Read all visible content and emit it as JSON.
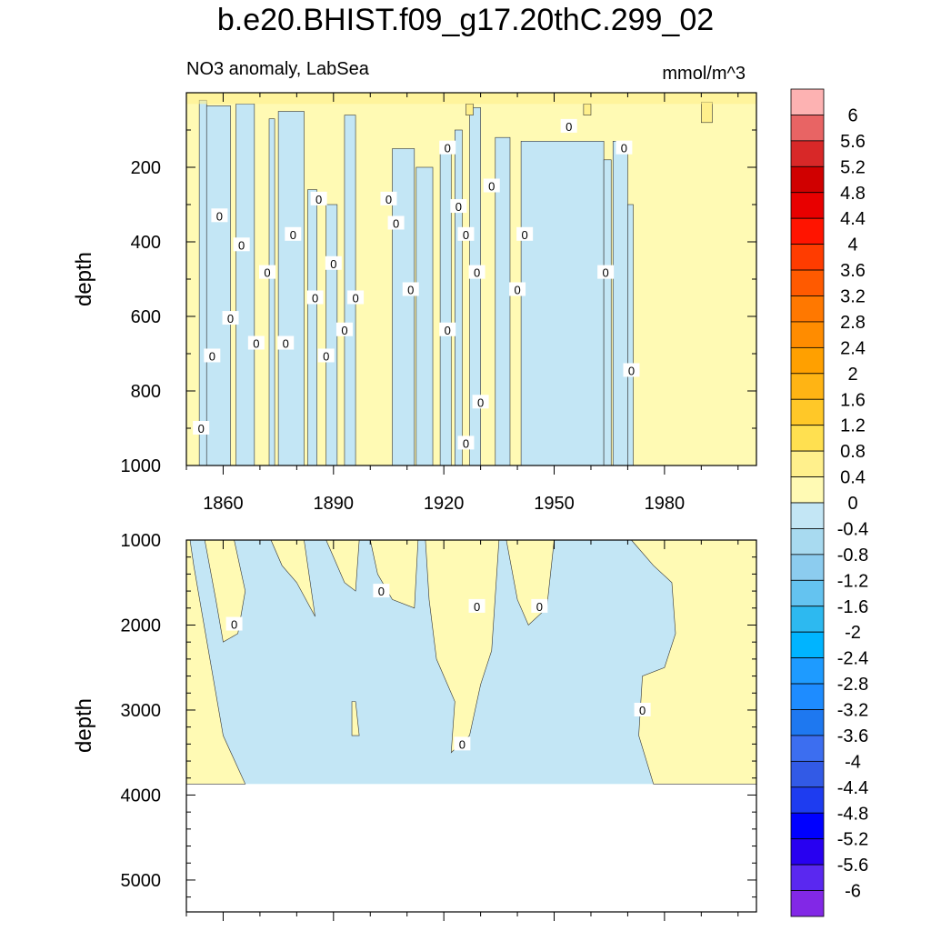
{
  "title": "b.e20.BHIST.f09_g17.20thC.299_02",
  "subtitle_left": "NO3 anomaly, LabSea",
  "subtitle_right": "mmol/m^3",
  "chart_data": [
    {
      "type": "heatmap",
      "panel": "upper",
      "ylabel": "depth",
      "xlim": [
        1850,
        2005
      ],
      "ylim": [
        0,
        1000
      ],
      "y_inverted": true,
      "x_ticks": [
        1860,
        1890,
        1920,
        1950,
        1980
      ],
      "y_ticks": [
        200,
        400,
        600,
        800,
        1000
      ],
      "contour_label": "0",
      "contour_label_positions": [
        [
          1854,
          900
        ],
        [
          1857,
          706
        ],
        [
          1859,
          330
        ],
        [
          1862,
          605
        ],
        [
          1865,
          408
        ],
        [
          1869,
          672
        ],
        [
          1872,
          482
        ],
        [
          1877,
          672
        ],
        [
          1879,
          380
        ],
        [
          1885,
          550
        ],
        [
          1886,
          285
        ],
        [
          1888,
          706
        ],
        [
          1890,
          458
        ],
        [
          1893,
          636
        ],
        [
          1896,
          550
        ],
        [
          1905,
          285
        ],
        [
          1907,
          350
        ],
        [
          1911,
          528
        ],
        [
          1921,
          148
        ],
        [
          1921,
          636
        ],
        [
          1924,
          305
        ],
        [
          1926,
          380
        ],
        [
          1926,
          940
        ],
        [
          1929,
          482
        ],
        [
          1930,
          830
        ],
        [
          1933,
          250
        ],
        [
          1940,
          528
        ],
        [
          1942,
          380
        ],
        [
          1954,
          90
        ],
        [
          1964,
          482
        ],
        [
          1969,
          148
        ],
        [
          1971,
          745
        ]
      ],
      "negative_regions": [
        [
          1853.5,
          1855.5,
          20,
          1000
        ],
        [
          1855.5,
          1862,
          35,
          1000
        ],
        [
          1863.5,
          1868.5,
          30,
          1000
        ],
        [
          1872.5,
          1874,
          70,
          1000
        ],
        [
          1875,
          1882,
          50,
          1000
        ],
        [
          1883,
          1885.5,
          260,
          1000
        ],
        [
          1888,
          1891,
          300,
          1000
        ],
        [
          1893,
          1896,
          60,
          1000
        ],
        [
          1906,
          1912,
          150,
          1000
        ],
        [
          1912.5,
          1917,
          200,
          1000
        ],
        [
          1919,
          1922,
          160,
          1000
        ],
        [
          1923,
          1925,
          100,
          1000
        ],
        [
          1927,
          1930,
          40,
          1000
        ],
        [
          1934,
          1938,
          120,
          1000
        ],
        [
          1941,
          1963.5,
          130,
          1000
        ],
        [
          1963.5,
          1965.5,
          180,
          1000
        ],
        [
          1966,
          1970,
          130,
          1000
        ],
        [
          1970,
          1971.5,
          300,
          1000
        ]
      ],
      "positive_regions_strong": [
        [
          1990,
          1993,
          25,
          80
        ],
        [
          1958,
          1960,
          30,
          60
        ],
        [
          1926,
          1928,
          30,
          60
        ]
      ]
    },
    {
      "type": "heatmap",
      "panel": "lower",
      "ylabel": "depth",
      "xlim": [
        1850,
        2005
      ],
      "ylim": [
        1000,
        5375
      ],
      "y_inverted": true,
      "y_ticks": [
        1000,
        2000,
        3000,
        4000,
        5000
      ],
      "data_bottom_depth": 3870,
      "contour_label": "0",
      "contour_label_positions": [
        [
          1863,
          1990
        ],
        [
          1903,
          1600
        ],
        [
          1929,
          1780
        ],
        [
          1946,
          1780
        ],
        [
          1925,
          3400
        ],
        [
          1974,
          3000
        ]
      ]
    }
  ],
  "colorbar": {
    "labels": [
      "6",
      "5.6",
      "5.2",
      "4.8",
      "4.4",
      "4",
      "3.6",
      "3.2",
      "2.8",
      "2.4",
      "2",
      "1.6",
      "1.2",
      "0.8",
      "0.4",
      "0",
      "-0.4",
      "-0.8",
      "-1.2",
      "-1.6",
      "-2",
      "-2.4",
      "-2.8",
      "-3.2",
      "-3.6",
      "-4",
      "-4.4",
      "-4.8",
      "-5.2",
      "-5.6",
      "-6"
    ],
    "colors": [
      "#FDB2B2",
      "#E86464",
      "#D82828",
      "#D00000",
      "#E80000",
      "#FF1400",
      "#FF3C00",
      "#FF5A00",
      "#FF7800",
      "#FF8C00",
      "#FFA000",
      "#FFB414",
      "#FFC828",
      "#FFE050",
      "#FFF08C",
      "#FFFAB4",
      "#C3E6F5",
      "#A8DAF0",
      "#8CCCEF",
      "#64C3F0",
      "#2DB9F0",
      "#00B4FF",
      "#1E9BFF",
      "#1E8CFF",
      "#1E78F0",
      "#3C6EF0",
      "#325AE6",
      "#1E3CF0",
      "#0000FF",
      "#2800F0",
      "#5A28F0",
      "#8228E6"
    ]
  },
  "colors": {
    "positive": "#FFFAB4",
    "positive_strong": "#FFF08C",
    "negative": "#C3E6F5"
  }
}
